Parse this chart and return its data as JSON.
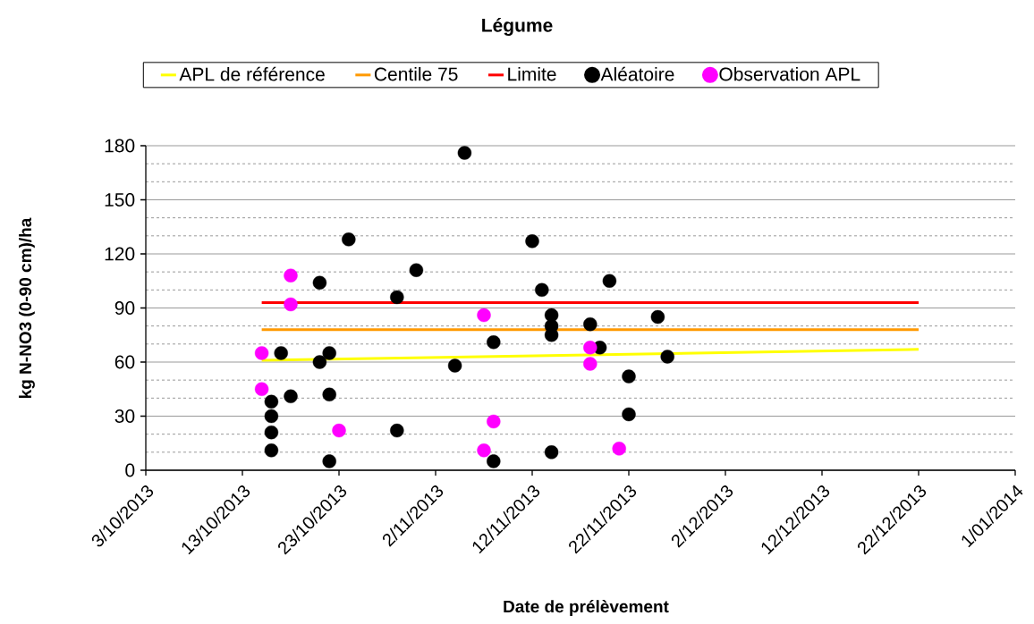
{
  "chart_data": {
    "type": "scatter",
    "title": "Légume",
    "xlabel": "Date de prélèvement",
    "ylabel": "kg N-NO3 (0-90 cm)/ha",
    "xlim": [
      "2013-10-03",
      "2014-01-01"
    ],
    "xticks": [
      {
        "value": "2013-10-03",
        "label": "3/10/2013"
      },
      {
        "value": "2013-10-13",
        "label": "13/10/2013"
      },
      {
        "value": "2013-10-23",
        "label": "23/10/2013"
      },
      {
        "value": "2013-11-02",
        "label": "2/11/2013"
      },
      {
        "value": "2013-11-12",
        "label": "12/11/2013"
      },
      {
        "value": "2013-11-22",
        "label": "22/11/2013"
      },
      {
        "value": "2013-12-02",
        "label": "2/12/2013"
      },
      {
        "value": "2013-12-12",
        "label": "12/12/2013"
      },
      {
        "value": "2013-12-22",
        "label": "22/12/2013"
      },
      {
        "value": "2014-01-01",
        "label": "1/01/2014"
      }
    ],
    "ylim": [
      0,
      180
    ],
    "yticks": [
      0,
      30,
      60,
      90,
      120,
      150,
      180
    ],
    "grid": "y",
    "legend": "top",
    "marker": "circle",
    "series": [
      {
        "name": "APL de référence",
        "type": "line",
        "marker": "none",
        "color": "#ffff00",
        "x": [
          "2013-10-15",
          "2013-12-22"
        ],
        "values": [
          61,
          67
        ]
      },
      {
        "name": "Centile 75",
        "type": "line",
        "marker": "none",
        "color": "#ff9900",
        "x": [
          "2013-10-15",
          "2013-12-22"
        ],
        "values": [
          78,
          78
        ]
      },
      {
        "name": "Limite",
        "type": "line",
        "marker": "none",
        "color": "#ff0000",
        "x": [
          "2013-10-15",
          "2013-12-22"
        ],
        "values": [
          93,
          93
        ]
      },
      {
        "name": "Aléatoire",
        "type": "scatter",
        "color": "#000000",
        "x": [
          "2013-10-16",
          "2013-10-16",
          "2013-10-16",
          "2013-10-16",
          "2013-10-17",
          "2013-10-18",
          "2013-10-21",
          "2013-10-21",
          "2013-10-22",
          "2013-10-22",
          "2013-10-22",
          "2013-10-24",
          "2013-10-29",
          "2013-10-29",
          "2013-10-31",
          "2013-11-04",
          "2013-11-05",
          "2013-11-08",
          "2013-11-08",
          "2013-11-12",
          "2013-11-13",
          "2013-11-14",
          "2013-11-14",
          "2013-11-14",
          "2013-11-14",
          "2013-11-18",
          "2013-11-19",
          "2013-11-20",
          "2013-11-22",
          "2013-11-22",
          "2013-11-25",
          "2013-11-26"
        ],
        "values": [
          38,
          30,
          21,
          11,
          65,
          41,
          60,
          104,
          65,
          42,
          5,
          128,
          96,
          22,
          111,
          58,
          176,
          71,
          5,
          127,
          100,
          86,
          80,
          75,
          10,
          81,
          68,
          105,
          52,
          31,
          85,
          63
        ]
      },
      {
        "name": "Observation APL",
        "type": "scatter",
        "color": "#ff00ff",
        "x": [
          "2013-10-15",
          "2013-10-15",
          "2013-10-18",
          "2013-10-18",
          "2013-10-23",
          "2013-11-07",
          "2013-11-07",
          "2013-11-08",
          "2013-11-18",
          "2013-11-18",
          "2013-11-21"
        ],
        "values": [
          65,
          45,
          108,
          92,
          22,
          86,
          11,
          27,
          68,
          59,
          12
        ]
      }
    ]
  }
}
